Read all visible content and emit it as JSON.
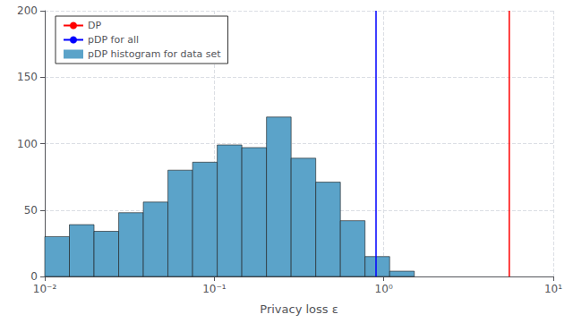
{
  "chart_data": {
    "type": "histogram",
    "xlabel": "Privacy loss ε",
    "log": "x",
    "xlim": [
      0.01,
      10
    ],
    "xticks": [
      {
        "value": 0.01,
        "label": "10⁻²"
      },
      {
        "value": 0.1,
        "label": "10⁻¹"
      },
      {
        "value": 1,
        "label": "10⁰"
      },
      {
        "value": 10,
        "label": "10¹"
      }
    ],
    "ylim": [
      0,
      200
    ],
    "yticks": [
      0,
      50,
      100,
      150,
      200
    ],
    "grid": true,
    "legend": "upper left",
    "series": [
      {
        "name": "DP",
        "type": "vline",
        "color": "red",
        "values": [
          5.5
        ]
      },
      {
        "name": "pDP for all",
        "type": "vline",
        "color": "blue",
        "values": [
          0.9
        ]
      },
      {
        "name": "pDP histogram for data set",
        "type": "bar",
        "color": "#5ba3c9",
        "bins": [
          0.01,
          0.013974,
          0.019528,
          0.02729,
          0.038136,
          0.053293,
          0.074473,
          0.10407,
          0.14543,
          0.20324,
          0.28401,
          0.39689,
          0.55462,
          0.77505,
          1.0831,
          1.5136
        ],
        "values": [
          30,
          39,
          34,
          48,
          56,
          80,
          86,
          99,
          97,
          120,
          89,
          71,
          42,
          15,
          4
        ]
      }
    ]
  }
}
